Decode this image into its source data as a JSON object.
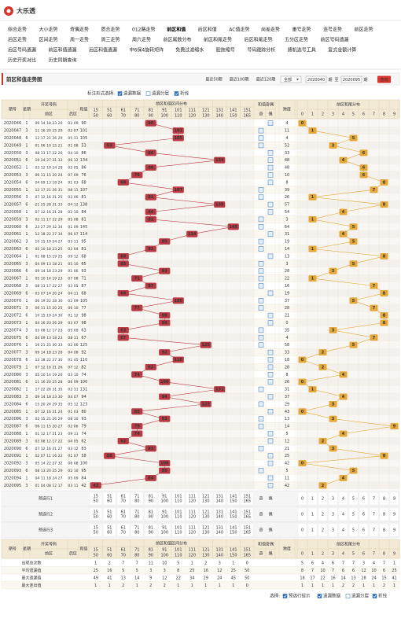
{
  "logo": "大乐透",
  "nav": [
    [
      "综合走势",
      "大小走势",
      "奇偶走势",
      "质合走势",
      "012路走势",
      "前区和值",
      "后区和值",
      "AC值走势",
      "尚差走势",
      "重号走势",
      "连号走势",
      "前区走势"
    ],
    [
      "后区走势",
      "区间走势",
      "周一走势",
      "周三走势",
      "周六走势",
      "前区尾数分布",
      "前区和尾走势",
      "后区和尾走势",
      "五分区走势",
      "前区号码遗漏"
    ],
    [
      "后区号码遗漏",
      "前区和值遗漏",
      "后区和值遗漏",
      "中6保4旋转矩阵",
      "免费过滤缩水",
      "胆拖缩号",
      "号码跟踪分析",
      "随机选号工具",
      "复式金额计算"
    ],
    [
      "历史开奖对比",
      "历史同期查询"
    ]
  ],
  "title": "前区和值走势图",
  "filters": {
    "recent": [
      "最近50期",
      "最近100期",
      "最近120期"
    ],
    "select": "全部",
    "from": "2020040",
    "unit": "期",
    "to_label": "至",
    "to": "2020095",
    "query": "查询"
  },
  "marking": {
    "label": "标注形式选择:",
    "options": [
      "遗漏数据",
      "遗漏分层",
      "折线"
    ]
  },
  "header": {
    "period": "期号",
    "week": "星期",
    "draw": "开奖号码",
    "front": "前区",
    "back": "后区",
    "sum": "和值",
    "zones_title": "前区和值区间分布",
    "zones": [
      {
        "from": 15,
        "to": 50
      },
      {
        "from": 51,
        "to": 60
      },
      {
        "from": 61,
        "to": 70
      },
      {
        "from": 71,
        "to": 80
      },
      {
        "from": 81,
        "to": 90
      },
      {
        "from": 91,
        "to": 100
      },
      {
        "from": 101,
        "to": 110
      },
      {
        "from": 111,
        "to": 120
      },
      {
        "from": 121,
        "to": 130
      },
      {
        "from": 131,
        "to": 140
      },
      {
        "from": 141,
        "to": 150
      },
      {
        "from": 151,
        "to": 165
      }
    ],
    "parity_title": "和值奇偶",
    "odd": "奇",
    "even": "偶",
    "span": "跨度",
    "tail_title": "前区和尾分布",
    "tails": [
      0,
      1,
      2,
      3,
      4,
      5,
      6,
      7,
      8,
      9
    ]
  },
  "rows": [
    {
      "period": "2020046",
      "week": 1,
      "front": "09 14 18 23 26",
      "back": "03 09",
      "sum": 90,
      "span": 4
    },
    {
      "period": "2020047",
      "week": 3,
      "front": "11 16 20 25 29",
      "back": "02 07",
      "sum": 101,
      "span": 11
    },
    {
      "period": "2020048",
      "week": 6,
      "front": "12 17 21 26 29",
      "back": "05 11",
      "sum": 105,
      "span": 4
    },
    {
      "period": "2020049",
      "week": 1,
      "front": "01 06 10 15 21",
      "back": "01 08",
      "sum": 53,
      "span": 52
    },
    {
      "period": "2020050",
      "week": 3,
      "front": "08 13 17 22 26",
      "back": "04 10",
      "sum": 86,
      "span": 33
    },
    {
      "period": "2020051",
      "week": 6,
      "front": "19 24 27 31 33",
      "back": "06 12",
      "sum": 134,
      "span": 48
    },
    {
      "period": "2020052",
      "week": 1,
      "front": "03 12 19 24 28",
      "back": "02 05",
      "sum": 86,
      "span": 48
    },
    {
      "period": "2020053",
      "week": 3,
      "front": "06 11 15 20 24",
      "back": "07 09",
      "sum": 76,
      "span": 10
    },
    {
      "period": "2020054",
      "week": 6,
      "front": "04 09 13 18 24",
      "back": "01 03",
      "sum": 68,
      "span": 8
    },
    {
      "period": "2020055",
      "week": 1,
      "front": "12 17 21 26 31",
      "back": "08 11",
      "sum": 107,
      "span": 39
    },
    {
      "period": "2020056",
      "week": 3,
      "front": "07 12 16 21 25",
      "back": "03 06",
      "sum": 81,
      "span": 26
    },
    {
      "period": "2020057",
      "week": 6,
      "front": "21 25 28 31 33",
      "back": "04 12",
      "sum": 138,
      "span": 57
    },
    {
      "period": "2020058",
      "week": 1,
      "front": "07 12 16 21 28",
      "back": "02 10",
      "sum": 84,
      "span": 54
    },
    {
      "period": "2020059",
      "week": 3,
      "front": "02 11 17 22 29",
      "back": "05 08",
      "sum": 81,
      "span": 3
    },
    {
      "period": "2020060",
      "week": 6,
      "front": "23 27 29 32 34",
      "back": "01 09",
      "sum": 145,
      "span": 64
    },
    {
      "period": "2020061",
      "week": 1,
      "front": "13 18 22 27 34",
      "back": "06 07",
      "sum": 114,
      "span": 31
    },
    {
      "period": "2020062",
      "week": 3,
      "front": "10 15 19 24 27",
      "back": "03 11",
      "sum": 95,
      "span": 19
    },
    {
      "period": "2020063",
      "week": 6,
      "front": "05 10 18 23 25",
      "back": "02 04",
      "sum": 81,
      "span": 14
    },
    {
      "period": "2020064",
      "week": 1,
      "front": "01 08 15 19 25",
      "back": "09 12",
      "sum": 68,
      "span": 13
    },
    {
      "period": "2020065",
      "week": 3,
      "front": "04 09 13 18 21",
      "back": "05 10",
      "sum": 65,
      "span": 3
    },
    {
      "period": "2020066",
      "week": 6,
      "front": "09 14 18 23 29",
      "back": "01 06",
      "sum": 93,
      "span": 28
    },
    {
      "period": "2020067",
      "week": 1,
      "front": "05 10 14 19 23",
      "back": "07 08",
      "sum": 71,
      "span": 22
    },
    {
      "period": "2020068",
      "week": 3,
      "front": "08 13 17 22 27",
      "back": "03 05",
      "sum": 87,
      "span": 16
    },
    {
      "period": "2020069",
      "week": 6,
      "front": "03 07 14 20 24",
      "back": "04 11",
      "sum": 68,
      "span": 19
    },
    {
      "period": "2020070",
      "week": 1,
      "front": "06 19 22 28 30",
      "back": "02 09",
      "sum": 105,
      "span": 37
    },
    {
      "period": "2020071",
      "week": 3,
      "front": "06 11 15 20 25",
      "back": "06 10",
      "sum": 77,
      "span": 28
    },
    {
      "period": "2020072",
      "week": 6,
      "front": "10 15 19 24 30",
      "back": "01 12",
      "sum": 98,
      "span": 21
    },
    {
      "period": "2020073",
      "week": 1,
      "front": "04 16 23 26 29",
      "back": "03 07",
      "sum": 98,
      "span": 0
    },
    {
      "period": "2020074",
      "week": 3,
      "front": "03 08 12 17 23",
      "back": "05 09",
      "sum": 63,
      "span": 35
    },
    {
      "period": "2020075",
      "week": 6,
      "front": "04 09 13 18 23",
      "back": "08 11",
      "sum": 67,
      "span": 4
    },
    {
      "period": "2020076",
      "week": 1,
      "front": "16 21 25 30 33",
      "back": "02 06",
      "sum": 125,
      "span": 58
    },
    {
      "period": "2020077",
      "week": 3,
      "front": "09 14 18 23 28",
      "back": "04 08",
      "sum": 92,
      "span": 33
    },
    {
      "period": "2020078",
      "week": 6,
      "front": "13 18 22 27 30",
      "back": "01 05",
      "sum": 110,
      "span": 18
    },
    {
      "period": "2020079",
      "week": 1,
      "front": "07 12 16 21 26",
      "back": "07 12",
      "sum": 82,
      "span": 28
    },
    {
      "period": "2020080",
      "week": 3,
      "front": "05 10 14 19 26",
      "back": "03 10",
      "sum": 74,
      "span": 8
    },
    {
      "period": "2020081",
      "week": 6,
      "front": "11 16 20 25 28",
      "back": "06 09",
      "sum": 100,
      "span": 26
    },
    {
      "period": "2020082",
      "week": 1,
      "front": "17 22 26 31 35",
      "back": "02 11",
      "sum": 131,
      "span": 31
    },
    {
      "period": "2020083",
      "week": 3,
      "front": "09 14 18 23 30",
      "back": "04 07",
      "sum": 94,
      "span": 37
    },
    {
      "period": "2020084",
      "week": 6,
      "front": "15 20 24 29 35",
      "back": "05 12",
      "sum": 123,
      "span": 29
    },
    {
      "period": "2020085",
      "week": 1,
      "front": "07 12 16 21 24",
      "back": "01 03",
      "sum": 80,
      "span": 43
    },
    {
      "period": "2020086",
      "week": 3,
      "front": "02 15 21 26 29",
      "back": "08 10",
      "sum": 93,
      "span": 13
    },
    {
      "period": "2020087",
      "week": 6,
      "front": "06 11 15 20 27",
      "back": "02 06",
      "sum": 79,
      "span": 14
    },
    {
      "period": "2020088",
      "week": 1,
      "front": "01 12 17 21 23",
      "back": "09 11",
      "sum": 74,
      "span": 5
    },
    {
      "period": "2020089",
      "week": 3,
      "front": "03 08 12 17 22",
      "back": "04 05",
      "sum": 62,
      "span": 12
    },
    {
      "period": "2020090",
      "week": 6,
      "front": "07 12 16 21 27",
      "back": "03 12",
      "sum": 83,
      "span": 21
    },
    {
      "period": "2020091",
      "week": 1,
      "front": "02 07 11 16 22",
      "back": "01 07",
      "sum": 58,
      "span": 25
    },
    {
      "period": "2020092",
      "week": 3,
      "front": "05 14 22 27 32",
      "back": "06 08",
      "sum": 100,
      "span": 42
    },
    {
      "period": "2020093",
      "week": 6,
      "front": "08 13 20 25 29",
      "back": "02 10",
      "sum": 95,
      "span": 5
    },
    {
      "period": "2020094",
      "week": 1,
      "front": "04 11 18 24 27",
      "back": "05 09",
      "sum": 84,
      "span": 11
    },
    {
      "period": "2020095",
      "week": 3,
      "front": "01 04 08 12 17",
      "back": "03 11",
      "sum": 42,
      "span": 42
    }
  ],
  "predict": [
    "预选行1",
    "预选行2",
    "预选行3"
  ],
  "stats": [
    {
      "label": "出现总次数",
      "zones": [
        1,
        2,
        7,
        7,
        11,
        10,
        5,
        1,
        2,
        3,
        1,
        0
      ],
      "tails": [
        5,
        6,
        4,
        6,
        7,
        7,
        3,
        4,
        7,
        1
      ]
    },
    {
      "label": "平均遗漏值",
      "zones": [
        25,
        16,
        5,
        5,
        3,
        3,
        8,
        25,
        16,
        12,
        25,
        50
      ],
      "tails": [
        8,
        7,
        10,
        7,
        6,
        6,
        12,
        10,
        6,
        25
      ]
    },
    {
      "label": "最大遗漏值",
      "zones": [
        49,
        41,
        13,
        14,
        9,
        12,
        22,
        34,
        29,
        24,
        45,
        50
      ],
      "tails": [
        18,
        17,
        22,
        16,
        14,
        13,
        28,
        24,
        15,
        41
      ]
    },
    {
      "label": "最大连出值",
      "zones": [
        1,
        1,
        2,
        1,
        2,
        2,
        1,
        1,
        1,
        1,
        1,
        0
      ],
      "tails": [
        1,
        1,
        1,
        1,
        2,
        2,
        1,
        1,
        2,
        1
      ]
    }
  ],
  "footer": {
    "label": "选择:",
    "options": [
      "预选行提示",
      "遗漏数据",
      "遗漏分层",
      "折线"
    ]
  }
}
